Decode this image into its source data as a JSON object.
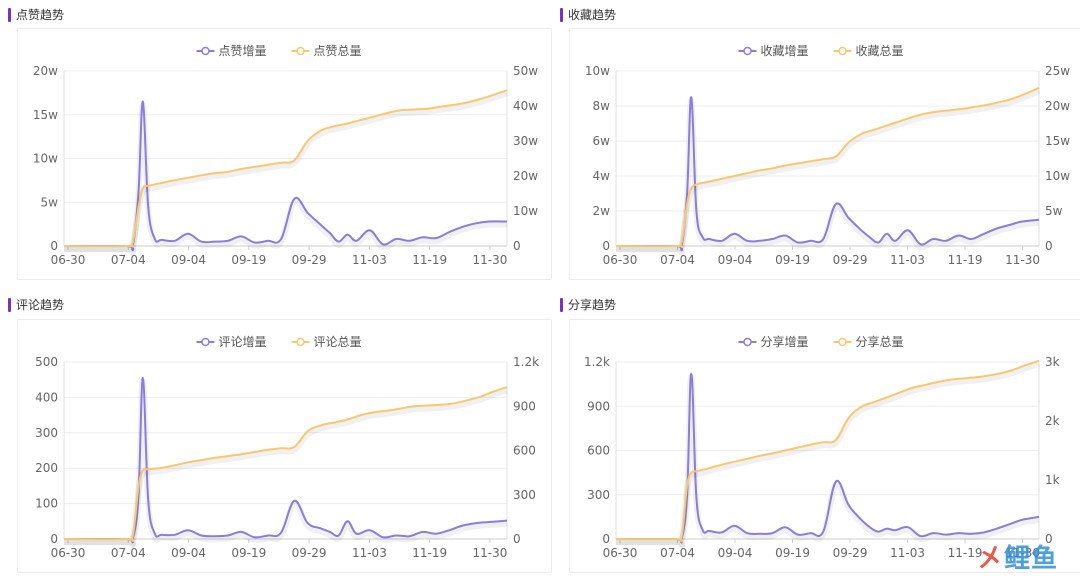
{
  "colors": {
    "increment": "#8b7cde",
    "total": "#f7c86f",
    "axis": "#666666",
    "grid": "#eeeeee"
  },
  "watermark": {
    "text_a": "㐅",
    "text_b": "鲤鱼"
  },
  "chart_data": [
    {
      "type": "line",
      "title": "点赞趋势",
      "legend_position": "top-center",
      "categories": [
        "06-30",
        "07-04",
        "09-04",
        "09-19",
        "09-29",
        "11-03",
        "11-19",
        "11-30"
      ],
      "y_left_ticks": [
        "0",
        "5w",
        "10w",
        "15w",
        "20w"
      ],
      "y_right_ticks": [
        "0",
        "10w",
        "20w",
        "30w",
        "40w",
        "50w"
      ],
      "ylim_left": [
        0,
        200000
      ],
      "ylim_right": [
        0,
        500000
      ],
      "series": [
        {
          "name": "点赞增量",
          "axis": "left",
          "x": [
            0,
            0.14,
            0.155,
            0.168,
            0.178,
            0.19,
            0.205,
            0.22,
            0.25,
            0.28,
            0.31,
            0.34,
            0.37,
            0.4,
            0.43,
            0.46,
            0.49,
            0.52,
            0.55,
            0.58,
            0.6,
            0.62,
            0.64,
            0.66,
            0.69,
            0.72,
            0.75,
            0.78,
            0.81,
            0.84,
            0.87,
            0.9,
            0.93,
            0.96,
            1.0
          ],
          "values": [
            0,
            0,
            0,
            60000,
            165000,
            45000,
            8000,
            7000,
            6000,
            14000,
            5000,
            5000,
            6000,
            11000,
            4000,
            6000,
            8000,
            54000,
            38000,
            24000,
            15000,
            5000,
            13000,
            6000,
            18000,
            2000,
            8000,
            6000,
            10000,
            9000,
            16000,
            22000,
            26000,
            28000,
            28000
          ]
        },
        {
          "name": "点赞总量",
          "axis": "right",
          "x": [
            0,
            0.14,
            0.155,
            0.168,
            0.178,
            0.19,
            0.22,
            0.25,
            0.28,
            0.31,
            0.34,
            0.37,
            0.4,
            0.43,
            0.46,
            0.49,
            0.52,
            0.55,
            0.58,
            0.61,
            0.64,
            0.67,
            0.7,
            0.73,
            0.76,
            0.79,
            0.82,
            0.85,
            0.88,
            0.91,
            0.94,
            0.97,
            1.0
          ],
          "values": [
            0,
            0,
            10000,
            110000,
            165000,
            172000,
            180000,
            188000,
            195000,
            202000,
            208000,
            212000,
            220000,
            226000,
            232000,
            238000,
            245000,
            300000,
            330000,
            342000,
            350000,
            360000,
            370000,
            380000,
            388000,
            390000,
            392000,
            398000,
            403000,
            410000,
            420000,
            432000,
            445000
          ]
        }
      ]
    },
    {
      "type": "line",
      "title": "收藏趋势",
      "legend_position": "top-center",
      "categories": [
        "06-30",
        "07-04",
        "09-04",
        "09-19",
        "09-29",
        "11-03",
        "11-19",
        "11-30"
      ],
      "y_left_ticks": [
        "0",
        "2w",
        "4w",
        "6w",
        "8w",
        "10w"
      ],
      "y_right_ticks": [
        "0",
        "5w",
        "10w",
        "15w",
        "20w",
        "25w"
      ],
      "ylim_left": [
        0,
        100000
      ],
      "ylim_right": [
        0,
        250000
      ],
      "series": [
        {
          "name": "收藏增量",
          "axis": "left",
          "x": [
            0,
            0.14,
            0.155,
            0.168,
            0.178,
            0.19,
            0.205,
            0.22,
            0.25,
            0.28,
            0.31,
            0.34,
            0.37,
            0.4,
            0.43,
            0.46,
            0.49,
            0.52,
            0.55,
            0.58,
            0.6,
            0.62,
            0.64,
            0.66,
            0.69,
            0.72,
            0.75,
            0.78,
            0.81,
            0.84,
            0.87,
            0.9,
            0.93,
            0.96,
            1.0
          ],
          "values": [
            0,
            0,
            0,
            30000,
            85000,
            20000,
            5000,
            4000,
            3000,
            7000,
            3000,
            3000,
            4000,
            6000,
            2000,
            3000,
            4000,
            24000,
            16000,
            9000,
            5000,
            2000,
            7000,
            3000,
            9000,
            1000,
            4000,
            3000,
            6000,
            4000,
            7000,
            10000,
            12000,
            14000,
            15000
          ]
        },
        {
          "name": "收藏总量",
          "axis": "right",
          "x": [
            0,
            0.14,
            0.155,
            0.168,
            0.178,
            0.19,
            0.22,
            0.25,
            0.28,
            0.31,
            0.34,
            0.37,
            0.4,
            0.43,
            0.46,
            0.49,
            0.52,
            0.55,
            0.58,
            0.61,
            0.64,
            0.67,
            0.7,
            0.73,
            0.76,
            0.79,
            0.82,
            0.85,
            0.88,
            0.91,
            0.94,
            0.97,
            1.0
          ],
          "values": [
            0,
            0,
            5000,
            60000,
            82000,
            88000,
            92000,
            96000,
            100000,
            104000,
            108000,
            111000,
            115000,
            118000,
            121000,
            124000,
            128000,
            148000,
            160000,
            166000,
            172000,
            178000,
            184000,
            189000,
            192000,
            194000,
            196000,
            199000,
            202000,
            206000,
            211000,
            218000,
            226000
          ]
        }
      ]
    },
    {
      "type": "line",
      "title": "评论趋势",
      "legend_position": "top-center",
      "categories": [
        "06-30",
        "07-04",
        "09-04",
        "09-19",
        "09-29",
        "11-03",
        "11-19",
        "11-30"
      ],
      "y_left_ticks": [
        "0",
        "100",
        "200",
        "300",
        "400",
        "500"
      ],
      "y_right_ticks": [
        "0",
        "300",
        "600",
        "900",
        "1.2k"
      ],
      "ylim_left": [
        0,
        500
      ],
      "ylim_right": [
        0,
        1200
      ],
      "series": [
        {
          "name": "评论增量",
          "axis": "left",
          "x": [
            0,
            0.14,
            0.155,
            0.168,
            0.178,
            0.19,
            0.205,
            0.22,
            0.25,
            0.28,
            0.31,
            0.34,
            0.37,
            0.4,
            0.43,
            0.46,
            0.49,
            0.52,
            0.55,
            0.58,
            0.6,
            0.62,
            0.64,
            0.66,
            0.69,
            0.72,
            0.75,
            0.78,
            0.81,
            0.84,
            0.87,
            0.9,
            0.93,
            0.96,
            1.0
          ],
          "values": [
            0,
            0,
            0,
            120,
            455,
            110,
            15,
            12,
            12,
            25,
            10,
            8,
            10,
            20,
            5,
            10,
            18,
            108,
            45,
            30,
            20,
            10,
            50,
            15,
            25,
            5,
            10,
            8,
            20,
            15,
            25,
            38,
            45,
            48,
            52
          ]
        },
        {
          "name": "评论总量",
          "axis": "right",
          "x": [
            0,
            0.14,
            0.155,
            0.168,
            0.178,
            0.19,
            0.22,
            0.25,
            0.28,
            0.31,
            0.34,
            0.37,
            0.4,
            0.43,
            0.46,
            0.49,
            0.52,
            0.55,
            0.58,
            0.61,
            0.64,
            0.67,
            0.7,
            0.73,
            0.76,
            0.79,
            0.82,
            0.85,
            0.88,
            0.91,
            0.94,
            0.97,
            1.0
          ],
          "values": [
            0,
            0,
            20,
            350,
            465,
            472,
            482,
            500,
            520,
            535,
            550,
            562,
            575,
            590,
            605,
            615,
            625,
            730,
            770,
            790,
            810,
            840,
            860,
            870,
            885,
            900,
            905,
            910,
            920,
            940,
            965,
            1000,
            1030
          ]
        }
      ]
    },
    {
      "type": "line",
      "title": "分享趋势",
      "legend_position": "top-center",
      "categories": [
        "06-30",
        "07-04",
        "09-04",
        "09-19",
        "09-29",
        "11-03",
        "11-19",
        "11-30"
      ],
      "y_left_ticks": [
        "0",
        "300",
        "600",
        "900",
        "1.2k"
      ],
      "y_right_ticks": [
        "0",
        "1k",
        "2k",
        "3k"
      ],
      "ylim_left": [
        0,
        1200
      ],
      "ylim_right": [
        0,
        3000
      ],
      "series": [
        {
          "name": "分享增量",
          "axis": "left",
          "x": [
            0,
            0.14,
            0.155,
            0.168,
            0.178,
            0.19,
            0.205,
            0.22,
            0.25,
            0.28,
            0.31,
            0.34,
            0.37,
            0.4,
            0.43,
            0.46,
            0.49,
            0.52,
            0.55,
            0.58,
            0.6,
            0.62,
            0.64,
            0.66,
            0.69,
            0.72,
            0.75,
            0.78,
            0.81,
            0.84,
            0.87,
            0.9,
            0.93,
            0.96,
            1.0
          ],
          "values": [
            0,
            0,
            0,
            300,
            1120,
            280,
            60,
            55,
            45,
            90,
            40,
            35,
            40,
            80,
            30,
            40,
            50,
            390,
            230,
            130,
            80,
            50,
            70,
            60,
            80,
            20,
            40,
            30,
            40,
            35,
            45,
            70,
            100,
            130,
            150
          ]
        },
        {
          "name": "分享总量",
          "axis": "right",
          "x": [
            0,
            0.14,
            0.155,
            0.168,
            0.178,
            0.19,
            0.22,
            0.25,
            0.28,
            0.31,
            0.34,
            0.37,
            0.4,
            0.43,
            0.46,
            0.49,
            0.52,
            0.55,
            0.58,
            0.61,
            0.64,
            0.67,
            0.7,
            0.73,
            0.76,
            0.79,
            0.82,
            0.85,
            0.88,
            0.91,
            0.94,
            0.97,
            1.0
          ],
          "values": [
            0,
            0,
            40,
            900,
            1120,
            1150,
            1200,
            1260,
            1310,
            1360,
            1410,
            1450,
            1500,
            1550,
            1600,
            1640,
            1680,
            2050,
            2240,
            2320,
            2400,
            2480,
            2560,
            2610,
            2660,
            2700,
            2720,
            2740,
            2770,
            2810,
            2870,
            2950,
            3020
          ]
        }
      ]
    }
  ]
}
